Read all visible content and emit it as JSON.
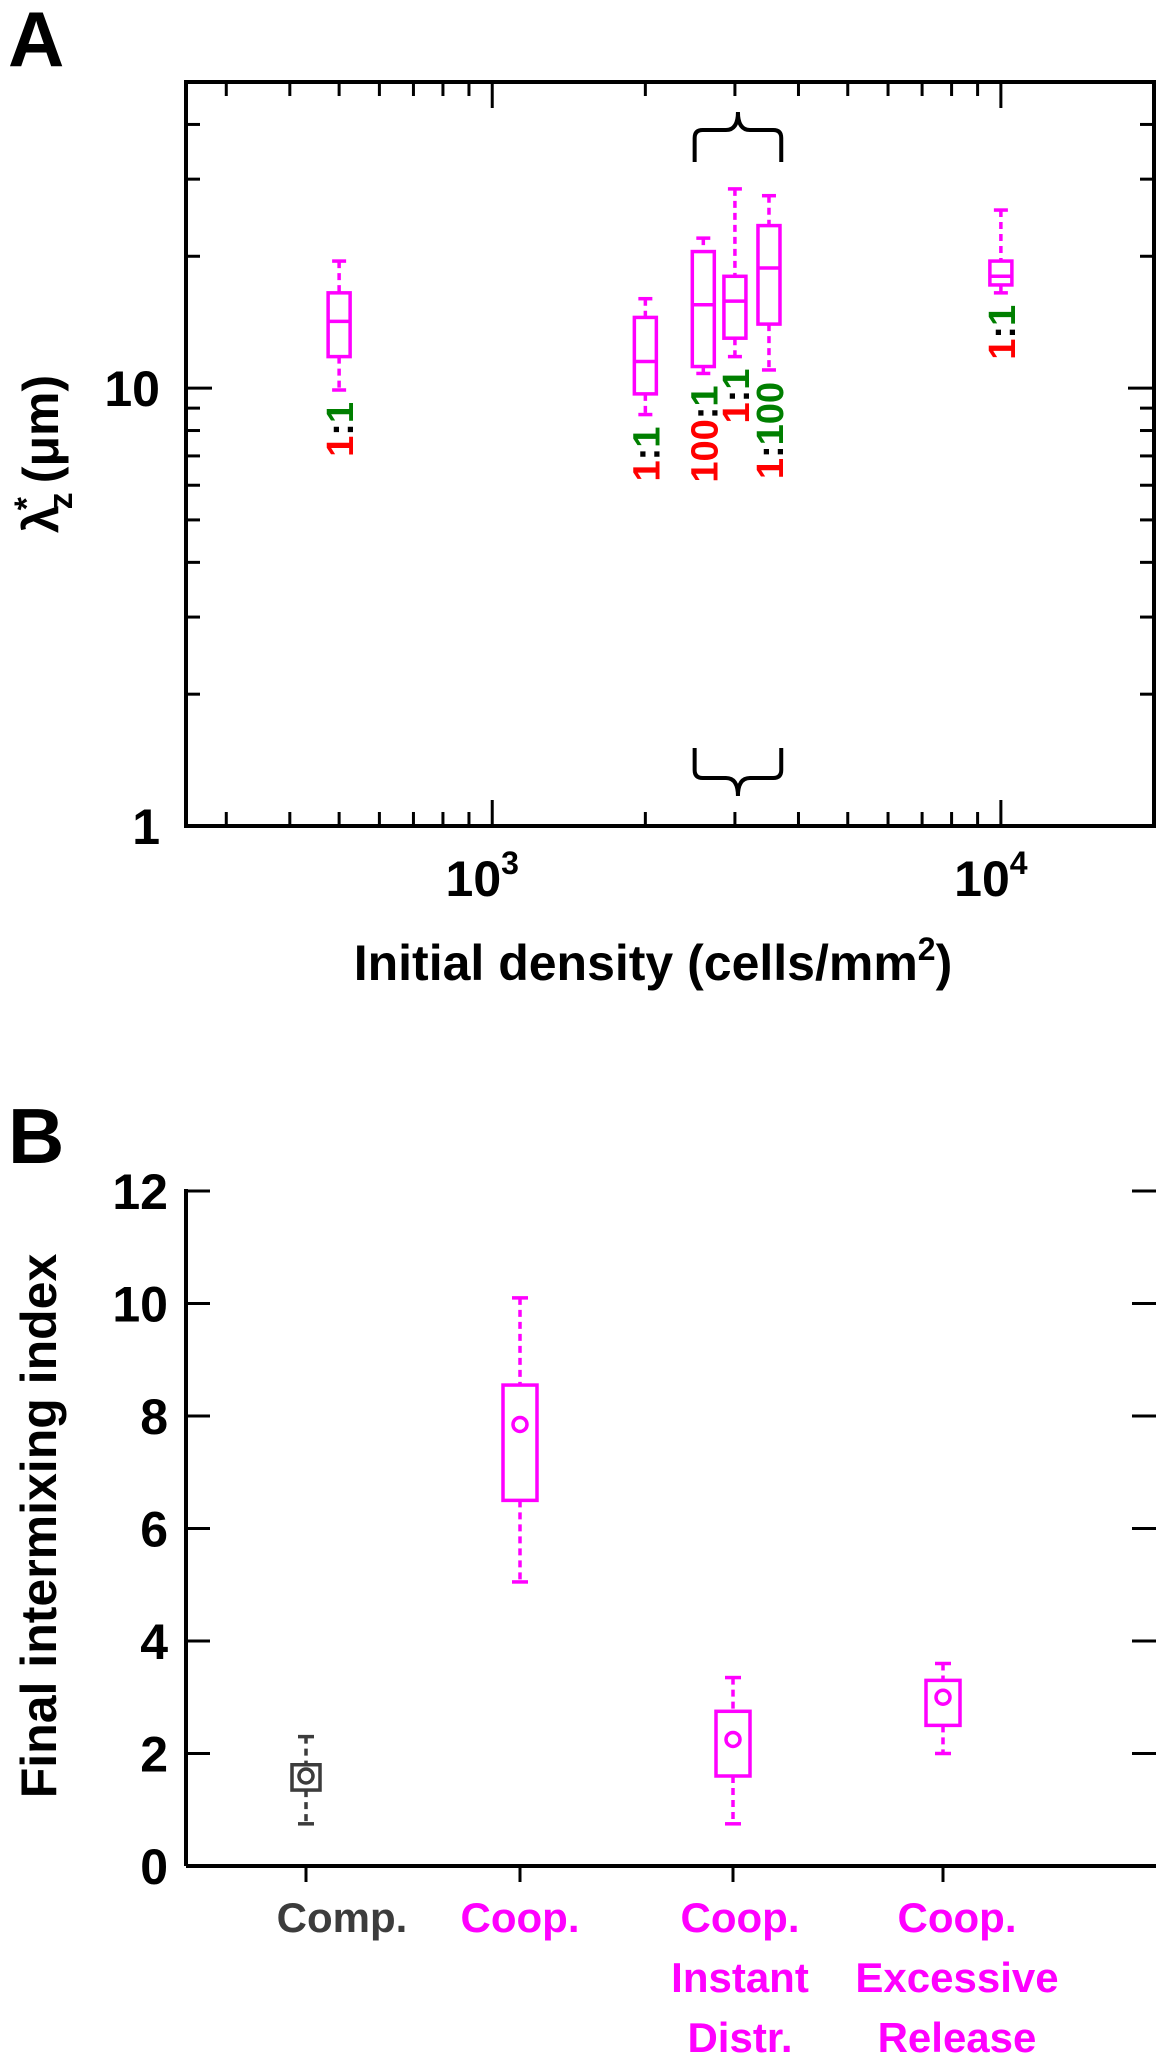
{
  "colors": {
    "magenta": "#ff00ff",
    "gray": "#3c3c3c",
    "red": "#ff0000",
    "green": "#007f00",
    "black": "#000000"
  },
  "panels": {
    "a_label": "A",
    "b_label": "B"
  },
  "chart_data": [
    {
      "type": "boxplot",
      "panel": "A",
      "xlabel": "Initial density (cells/mm",
      "xlabel_sup": "2",
      "xlabel_end": ")",
      "ylabel_main": "λ",
      "ylabel_sub": "z",
      "ylabel_sup": "*",
      "ylabel_unit": " (μm)",
      "xscale": "log",
      "yscale": "log",
      "xlim": [
        250,
        20000
      ],
      "ylim": [
        1,
        50
      ],
      "x_ticks": [
        {
          "base": "10",
          "exp": "3",
          "value": 1000
        },
        {
          "base": "10",
          "exp": "4",
          "value": 10000
        }
      ],
      "y_ticks": [
        {
          "label": "1",
          "value": 1
        },
        {
          "label": "10",
          "value": 10
        }
      ],
      "boxes": [
        {
          "x": 500,
          "min": 9.9,
          "q1": 11.8,
          "median": 14.2,
          "q3": 16.5,
          "max": 19.5,
          "ratio": [
            {
              "t": "1",
              "c": "red"
            },
            {
              "t": ":",
              "c": "black"
            },
            {
              "t": "1",
              "c": "green"
            }
          ]
        },
        {
          "x": 2000,
          "min": 8.7,
          "q1": 9.7,
          "median": 11.5,
          "q3": 14.5,
          "max": 16.0,
          "ratio": [
            {
              "t": "1",
              "c": "red"
            },
            {
              "t": ":",
              "c": "black"
            },
            {
              "t": "1",
              "c": "green"
            }
          ]
        },
        {
          "x": 2600,
          "min": 10.8,
          "q1": 11.2,
          "median": 15.5,
          "q3": 20.5,
          "max": 22.0,
          "ratio": [
            {
              "t": "100",
              "c": "red"
            },
            {
              "t": ":",
              "c": "black"
            },
            {
              "t": "1",
              "c": "green"
            }
          ]
        },
        {
          "x": 3000,
          "min": 11.8,
          "q1": 13.0,
          "median": 15.8,
          "q3": 18.0,
          "max": 28.5,
          "ratio": [
            {
              "t": "1",
              "c": "red"
            },
            {
              "t": ":",
              "c": "black"
            },
            {
              "t": "1",
              "c": "green"
            }
          ]
        },
        {
          "x": 3500,
          "min": 11.0,
          "q1": 14.0,
          "median": 18.8,
          "q3": 23.5,
          "max": 27.5,
          "ratio": [
            {
              "t": "1",
              "c": "red"
            },
            {
              "t": ":",
              "c": "black"
            },
            {
              "t": "100",
              "c": "green"
            }
          ]
        },
        {
          "x": 10000,
          "min": 16.5,
          "q1": 17.2,
          "median": 18.0,
          "q3": 19.5,
          "max": 25.5,
          "ratio": [
            {
              "t": "1",
              "c": "red"
            },
            {
              "t": ":",
              "c": "black"
            },
            {
              "t": "1",
              "c": "green"
            }
          ]
        }
      ],
      "brace_range": [
        2500,
        3700
      ]
    },
    {
      "type": "boxplot",
      "panel": "B",
      "ylabel": "Final intermixing index",
      "ylim": [
        0,
        12
      ],
      "y_ticks": [
        0,
        2,
        4,
        6,
        8,
        10,
        12
      ],
      "categories": [
        {
          "lines": [
            "Comp."
          ],
          "color": "gray"
        },
        {
          "lines": [
            "Coop."
          ],
          "color": "magenta"
        },
        {
          "lines": [
            "Coop.",
            "Instant",
            "Distr."
          ],
          "color": "magenta"
        },
        {
          "lines": [
            "Coop.",
            "Excessive",
            "Release"
          ],
          "color": "magenta"
        }
      ],
      "boxes": [
        {
          "min": 0.75,
          "q1": 1.35,
          "mean": 1.6,
          "q3": 1.8,
          "max": 2.3
        },
        {
          "min": 5.05,
          "q1": 6.5,
          "mean": 7.85,
          "q3": 8.55,
          "max": 10.1
        },
        {
          "min": 0.75,
          "q1": 1.6,
          "mean": 2.25,
          "q3": 2.75,
          "max": 3.35
        },
        {
          "min": 2.0,
          "q1": 2.5,
          "mean": 3.0,
          "q3": 3.3,
          "max": 3.6
        }
      ]
    }
  ]
}
